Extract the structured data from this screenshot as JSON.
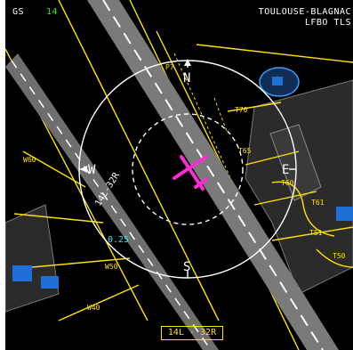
{
  "header": {
    "gs_label": "GS",
    "gs_value": "14",
    "airport_name": "TOULOUSE-BLAGNAC",
    "airport_codes": "LFBO  TLS"
  },
  "compass": {
    "north": "N",
    "south": "S",
    "east": "E",
    "west": "W",
    "range_label": "0.25"
  },
  "runway": {
    "label_on_map": "14L-32R",
    "selected_box": "14L - 32R"
  },
  "taxiways": {
    "p7": "P7",
    "t70": "T70",
    "t60": "T60",
    "t65": "T65",
    "t61": "T61",
    "t50": "T50",
    "t51": "T51",
    "w60": "W60",
    "w50": "W50",
    "w40": "W40"
  },
  "colors": {
    "background": "#000000",
    "runway": "#7a7a7a",
    "taxiway_line": "#ffe000",
    "aircraft_symbol": "#ff2bd6",
    "ground_speed": "#2ee62e",
    "range_ring": "#ffffff",
    "range_value": "#33e0ff",
    "apron_blue": "#1e6fd6"
  }
}
